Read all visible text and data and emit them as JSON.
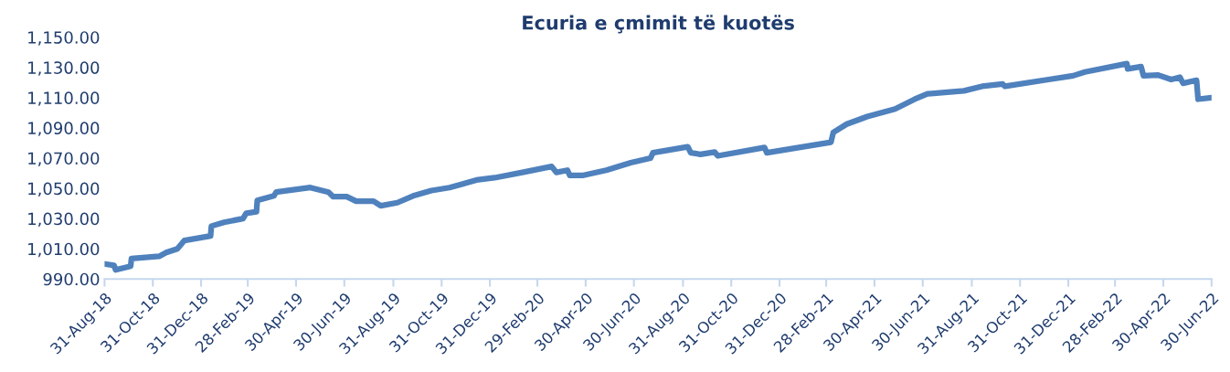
{
  "chart_data": {
    "type": "line",
    "title": "Ecuria e çmimit të kuotës",
    "x": [
      "2018-08-31",
      "2018-09-12",
      "2018-09-14",
      "2018-10-03",
      "2018-10-04",
      "2018-11-08",
      "2018-11-17",
      "2018-12-01",
      "2018-12-10",
      "2019-01-12",
      "2019-01-13",
      "2019-01-29",
      "2019-02-22",
      "2019-02-26",
      "2019-03-11",
      "2019-03-12",
      "2019-04-02",
      "2019-04-05",
      "2019-05-18",
      "2019-06-10",
      "2019-06-16",
      "2019-07-03",
      "2019-07-15",
      "2019-08-06",
      "2019-08-15",
      "2019-09-05",
      "2019-09-25",
      "2019-10-18",
      "2019-11-10",
      "2019-12-14",
      "2020-01-06",
      "2020-02-10",
      "2020-03-18",
      "2020-03-24",
      "2020-04-07",
      "2020-04-10",
      "2020-04-26",
      "2020-05-26",
      "2020-06-26",
      "2020-07-21",
      "2020-07-24",
      "2020-09-06",
      "2020-09-10",
      "2020-09-22",
      "2020-10-10",
      "2020-10-14",
      "2020-12-12",
      "2020-12-15",
      "2021-03-06",
      "2021-03-09",
      "2021-03-26",
      "2021-04-21",
      "2021-05-26",
      "2021-06-20",
      "2021-07-06",
      "2021-08-21",
      "2021-09-13",
      "2021-10-09",
      "2021-10-12",
      "2021-12-06",
      "2022-01-06",
      "2022-01-21",
      "2022-03-15",
      "2022-03-16",
      "2022-04-02",
      "2022-04-05",
      "2022-04-23",
      "2022-05-10",
      "2022-05-21",
      "2022-05-25",
      "2022-06-11",
      "2022-06-13",
      "2022-06-30"
    ],
    "series": [
      {
        "color": "#4f81bd",
        "values": [
          1000,
          999,
          996,
          998.5,
          1003.5,
          1005,
          1007.5,
          1010,
          1015.5,
          1018.5,
          1025,
          1027.5,
          1030,
          1033.5,
          1034.5,
          1042,
          1045,
          1047.5,
          1050.5,
          1047.5,
          1044.5,
          1044.5,
          1041.5,
          1041.5,
          1038.5,
          1040.5,
          1045,
          1048.5,
          1050.5,
          1055.5,
          1057,
          1060.5,
          1064.5,
          1060.5,
          1062,
          1058.5,
          1058.5,
          1062,
          1067,
          1070,
          1073.5,
          1077.5,
          1073.5,
          1072.5,
          1074,
          1071.5,
          1077,
          1073.5,
          1080.5,
          1087,
          1092.5,
          1097.5,
          1102.5,
          1109,
          1112.5,
          1114.5,
          1117.5,
          1119,
          1117.5,
          1122,
          1124.5,
          1127,
          1132.5,
          1129,
          1130.5,
          1124.5,
          1125,
          1122,
          1123.5,
          1119.5,
          1121.5,
          1109,
          1110
        ]
      }
    ],
    "xlim": [
      "2018-08-31",
      "2022-06-30"
    ],
    "xticks": [
      {
        "value": "2018-08-31",
        "label": "31-Aug-18"
      },
      {
        "value": "2018-10-31",
        "label": "31-Oct-18"
      },
      {
        "value": "2018-12-31",
        "label": "31-Dec-18"
      },
      {
        "value": "2019-02-28",
        "label": "28-Feb-19"
      },
      {
        "value": "2019-04-30",
        "label": "30-Apr-19"
      },
      {
        "value": "2019-06-30",
        "label": "30-Jun-19"
      },
      {
        "value": "2019-08-31",
        "label": "31-Aug-19"
      },
      {
        "value": "2019-10-31",
        "label": "31-Oct-19"
      },
      {
        "value": "2019-12-31",
        "label": "31-Dec-19"
      },
      {
        "value": "2020-02-29",
        "label": "29-Feb-20"
      },
      {
        "value": "2020-04-30",
        "label": "30-Apr-20"
      },
      {
        "value": "2020-06-30",
        "label": "30-Jun-20"
      },
      {
        "value": "2020-08-31",
        "label": "31-Aug-20"
      },
      {
        "value": "2020-10-31",
        "label": "31-Oct-20"
      },
      {
        "value": "2020-12-31",
        "label": "31-Dec-20"
      },
      {
        "value": "2021-02-28",
        "label": "28-Feb-21"
      },
      {
        "value": "2021-04-30",
        "label": "30-Apr-21"
      },
      {
        "value": "2021-06-30",
        "label": "30-Jun-21"
      },
      {
        "value": "2021-08-31",
        "label": "31-Aug-21"
      },
      {
        "value": "2021-10-31",
        "label": "31-Oct-21"
      },
      {
        "value": "2021-12-31",
        "label": "31-Dec-21"
      },
      {
        "value": "2022-02-28",
        "label": "28-Feb-22"
      },
      {
        "value": "2022-04-30",
        "label": "30-Apr-22"
      },
      {
        "value": "2022-06-30",
        "label": "30-Jun-22"
      }
    ],
    "ylim": [
      990,
      1150
    ],
    "yticks": [
      {
        "value": 990,
        "label": "990.00"
      },
      {
        "value": 1010,
        "label": "1,010.00"
      },
      {
        "value": 1030,
        "label": "1,030.00"
      },
      {
        "value": 1050,
        "label": "1,050.00"
      },
      {
        "value": 1070,
        "label": "1,070.00"
      },
      {
        "value": 1090,
        "label": "1,090.00"
      },
      {
        "value": 1110,
        "label": "1,110.00"
      },
      {
        "value": 1130,
        "label": "1,130.00"
      },
      {
        "value": 1150,
        "label": "1,150.00"
      }
    ],
    "grid": false,
    "legend": false,
    "marker": "none",
    "line_style": "solid"
  }
}
